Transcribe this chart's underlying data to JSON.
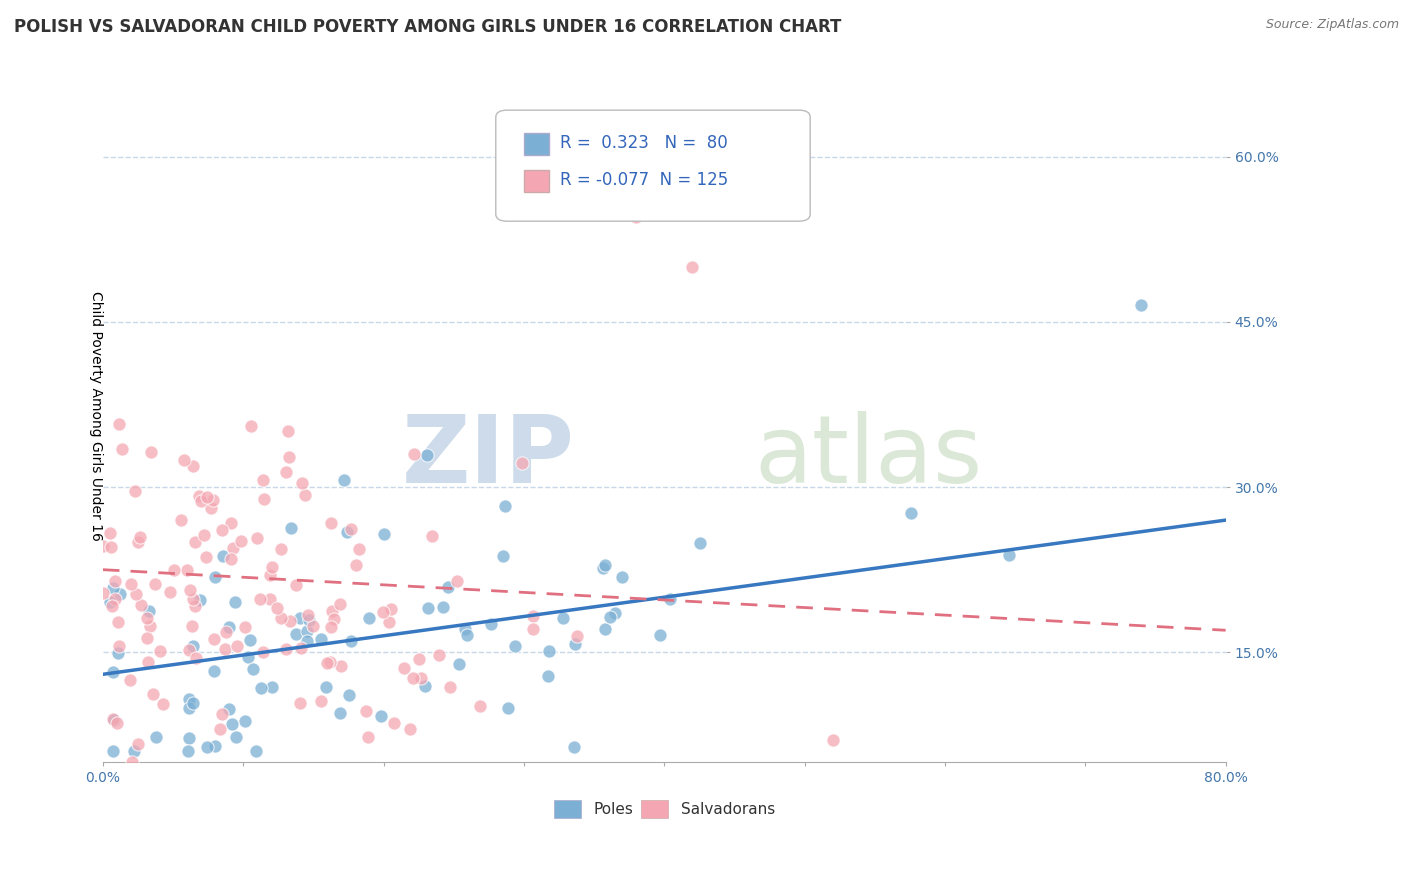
{
  "title": "POLISH VS SALVADORAN CHILD POVERTY AMONG GIRLS UNDER 16 CORRELATION CHART",
  "source": "Source: ZipAtlas.com",
  "ylabel": "Child Poverty Among Girls Under 16",
  "xlim": [
    0.0,
    0.8
  ],
  "ylim": [
    0.05,
    0.68
  ],
  "xtick_positions": [
    0.0,
    0.1,
    0.2,
    0.3,
    0.4,
    0.5,
    0.6,
    0.7,
    0.8
  ],
  "ytick_positions": [
    0.15,
    0.3,
    0.45,
    0.6
  ],
  "yticklabels": [
    "15.0%",
    "30.0%",
    "45.0%",
    "60.0%"
  ],
  "poles_R": 0.323,
  "poles_N": 80,
  "salvadorans_R": -0.077,
  "salvadorans_N": 125,
  "poles_color": "#7BAFD4",
  "salvadorans_color": "#F4A7B2",
  "trendline_poles_color": "#3878C0",
  "trendline_salvadorans_color": "#E07080",
  "watermark_zip": "ZIP",
  "watermark_atlas": "atlas",
  "background_color": "#ffffff",
  "grid_color": "#c8d8e8",
  "title_fontsize": 12,
  "axis_label_fontsize": 10,
  "tick_fontsize": 10,
  "legend_fontsize": 12
}
